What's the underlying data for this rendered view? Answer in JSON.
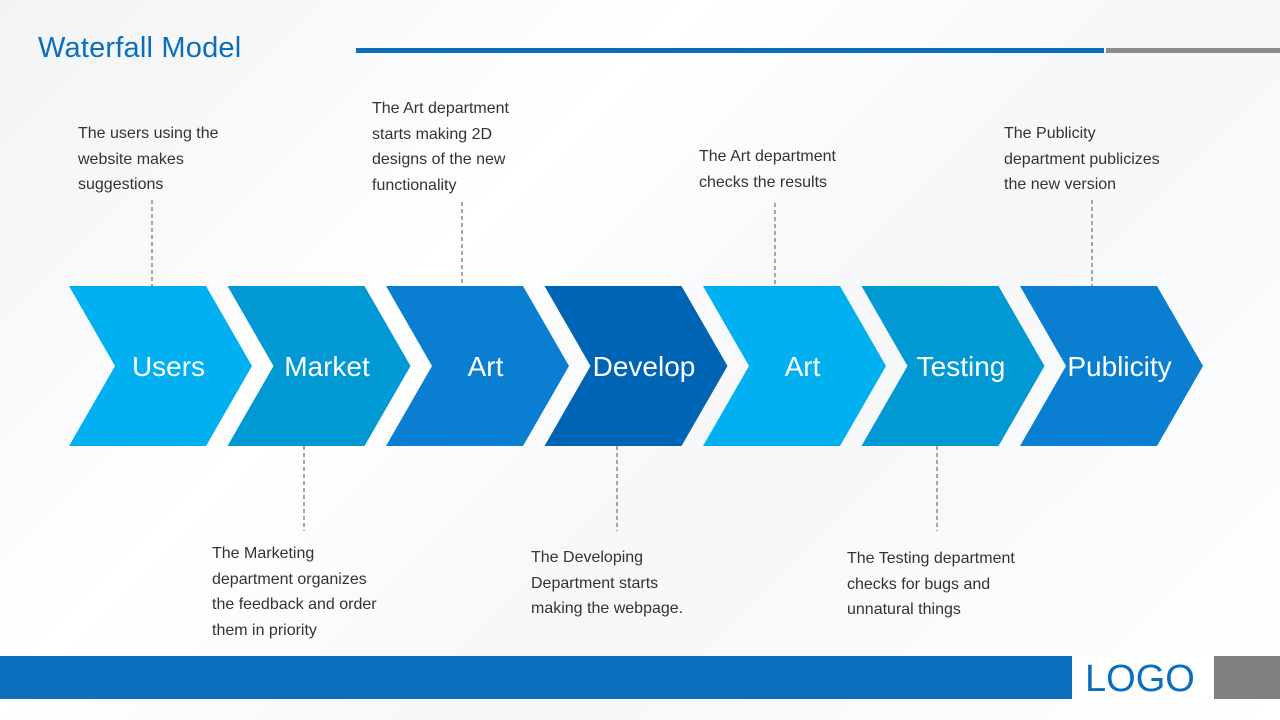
{
  "title": "Waterfall Model",
  "colors": {
    "title_rule_blue": "#0a6ebd",
    "title_rule_gray": "#8c8c8c",
    "footer_blue": "#0a6ebd",
    "footer_gray": "#7f7f7f",
    "connector": "#a6a6a6",
    "arrow_text": "#ffffff"
  },
  "stages": [
    {
      "label": "Users",
      "color": "#00b0f0"
    },
    {
      "label": "Market",
      "color": "#0099d4"
    },
    {
      "label": "Art",
      "color": "#0a7fd2"
    },
    {
      "label": "Develop",
      "color": "#0064b4"
    },
    {
      "label": "Art",
      "color": "#00b0f0"
    },
    {
      "label": "Testing",
      "color": "#0099d4"
    },
    {
      "label": "Publicity",
      "color": "#0a7fd2"
    }
  ],
  "callouts": [
    {
      "stage": 0,
      "position": "above",
      "text": "The users using the\nwebsite makes\nsuggestions"
    },
    {
      "stage": 1,
      "position": "below",
      "text": "The Marketing\ndepartment organizes\nthe feedback and order\nthem in priority"
    },
    {
      "stage": 2,
      "position": "above",
      "text": "The Art department\nstarts making 2D\ndesigns of the new\nfunctionality"
    },
    {
      "stage": 3,
      "position": "below",
      "text": "The Developing\nDepartment starts\nmaking the webpage."
    },
    {
      "stage": 4,
      "position": "above",
      "text": "The Art department\nchecks the results"
    },
    {
      "stage": 5,
      "position": "below",
      "text": "The Testing department\nchecks for bugs and\nunnatural things"
    },
    {
      "stage": 6,
      "position": "above",
      "text": "The Publicity\ndepartment publicizes\nthe new version"
    }
  ],
  "logo": "LOGO"
}
